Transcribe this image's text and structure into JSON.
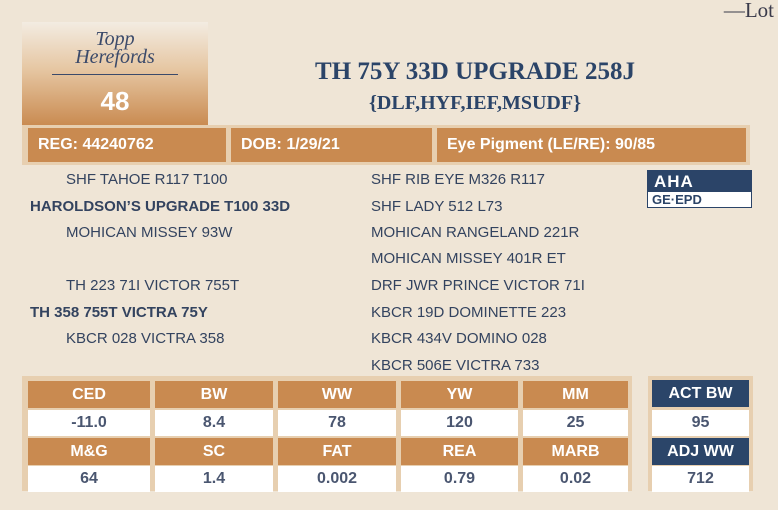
{
  "lot_label": "—Lot",
  "logo": {
    "text_line1": "Topp",
    "text_line2": "Herefords"
  },
  "lot_number": "48",
  "title": "TH 75Y 33D UPGRADE 258J",
  "subtitle": "{DLF,HYF,IEF,MSUDF}",
  "info": {
    "reg": "REG: 44240762",
    "dob": "DOB: 1/29/21",
    "eye": "Eye Pigment (LE/RE): 90/85"
  },
  "pedigree": {
    "sire": {
      "sire": "SHF TAHOE R117 T100",
      "name": "HAROLDSON’S UPGRADE T100 33D",
      "dam": "MOHICAN MISSEY 93W"
    },
    "sire_right": [
      "SHF RIB EYE M326 R117",
      "SHF LADY 512 L73",
      "MOHICAN RANGELAND 221R",
      "MOHICAN MISSEY 401R ET"
    ],
    "dam": {
      "sire": "TH 223 71I VICTOR 755T",
      "name": "TH 358 755T VICTRA 75Y",
      "dam": "KBCR 028 VICTRA 358"
    },
    "dam_right": [
      "DRF JWR PRINCE VICTOR 71I",
      "KBCR 19D DOMINETTE 223",
      "KBCR 434V DOMINO 028",
      "KBCR 506E VICTRA 733"
    ]
  },
  "aha_logo": {
    "top": "AHA",
    "bottom": "GE·EPD"
  },
  "epd": {
    "row1_headers": [
      "CED",
      "BW",
      "WW",
      "YW",
      "MM"
    ],
    "row1_values": [
      "-11.0",
      "8.4",
      "78",
      "120",
      "25"
    ],
    "row2_headers": [
      "M&G",
      "SC",
      "FAT",
      "REA",
      "MARB"
    ],
    "row2_values": [
      "64",
      "1.4",
      "0.002",
      "0.79",
      "0.02"
    ]
  },
  "actual": {
    "act_bw_label": "ACT BW",
    "act_bw": "95",
    "adj_ww_label": "ADJ WW",
    "adj_ww": "712"
  },
  "colors": {
    "tan": "#c98a50",
    "navy": "#2b4569",
    "background": "#efe5d6"
  }
}
